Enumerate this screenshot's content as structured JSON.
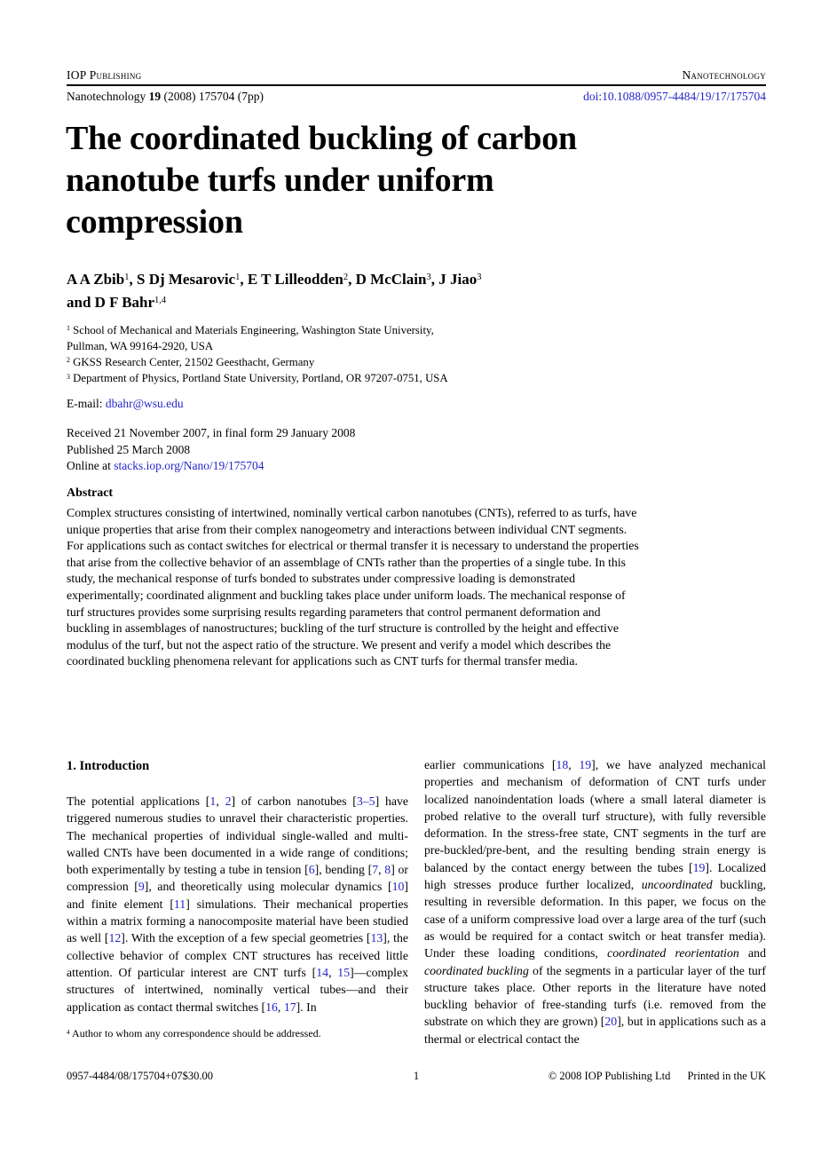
{
  "colors": {
    "link": "#2424cb",
    "text": "#000000"
  },
  "header": {
    "publisher": "IOP Publishing",
    "journal": "Nanotechnology",
    "citation": [
      {
        "t": "Nanotechnology "
      },
      {
        "t": "19",
        "s": "b"
      },
      {
        "t": " (2008) 175704 (7pp)"
      }
    ],
    "doi": "doi:10.1088/0957-4484/19/17/175704"
  },
  "title": [
    {
      "t": "The coordinated buckling of carbon"
    },
    {
      "br": true
    },
    {
      "t": "nanotube turfs under uniform"
    },
    {
      "br": true
    },
    {
      "t": "compression"
    }
  ],
  "authors": [
    {
      "t": "A A Zbib"
    },
    {
      "t": "1",
      "s": "sup"
    },
    {
      "t": ", S Dj Mesarovic"
    },
    {
      "t": "1",
      "s": "sup"
    },
    {
      "t": ", E T Lilleodden"
    },
    {
      "t": "2",
      "s": "sup"
    },
    {
      "t": ", D McClain"
    },
    {
      "t": "3",
      "s": "sup"
    },
    {
      "t": ", J Jiao"
    },
    {
      "t": "3",
      "s": "sup"
    },
    {
      "br": true
    },
    {
      "t": "and D F Bahr"
    },
    {
      "t": "1,4",
      "s": "sup"
    }
  ],
  "affiliations": [
    [
      {
        "t": "1",
        "s": "sup"
      },
      {
        "t": " School of Mechanical and Materials Engineering, Washington State University,"
      },
      {
        "br": true
      },
      {
        "t": "Pullman, WA 99164-2920, USA"
      }
    ],
    [
      {
        "t": "2",
        "s": "sup"
      },
      {
        "t": " GKSS Research Center, 21502 Geesthacht, Germany"
      }
    ],
    [
      {
        "t": "3",
        "s": "sup"
      },
      {
        "t": " Department of Physics, Portland State University, Portland, OR 97207-0751, USA"
      }
    ]
  ],
  "email": [
    {
      "t": "E-mail: "
    },
    {
      "t": "dbahr@wsu.edu",
      "s": "link",
      "n": "email-link"
    }
  ],
  "dates": {
    "received": "Received 21 November 2007, in final form 29 January 2008",
    "published": "Published 25 March 2008",
    "online": [
      {
        "t": "Online at "
      },
      {
        "t": "stacks.iop.org/Nano/19/175704",
        "s": "link",
        "n": "stacks-link"
      }
    ]
  },
  "abstract": {
    "heading": "Abstract",
    "text": "Complex structures consisting of intertwined, nominally vertical carbon nanotubes (CNTs), referred to as turfs, have unique properties that arise from their complex nanogeometry and interactions between individual CNT segments. For applications such as contact switches for electrical or thermal transfer it is necessary to understand the properties that arise from the collective behavior of an assemblage of CNTs rather than the properties of a single tube. In this study, the mechanical response of turfs bonded to substrates under compressive loading is demonstrated experimentally; coordinated alignment and buckling takes place under uniform loads. The mechanical response of turf structures provides some surprising results regarding parameters that control permanent deformation and buckling in assemblages of nanostructures; buckling of the turf structure is controlled by the height and effective modulus of the turf, but not the aspect ratio of the structure. We present and verify a model which describes the coordinated buckling phenomena relevant for applications such as CNT turfs for thermal transfer media."
  },
  "sections": {
    "intro_heading": "1. Introduction"
  },
  "body": {
    "left_paragraph": [
      {
        "t": "The potential applications ["
      },
      {
        "t": "1",
        "s": "link"
      },
      {
        "t": ", "
      },
      {
        "t": "2",
        "s": "link"
      },
      {
        "t": "] of carbon nanotubes ["
      },
      {
        "t": "3–5",
        "s": "link"
      },
      {
        "t": "] have triggered numerous studies to unravel their characteristic properties. The mechanical properties of individual single-walled and multi-walled CNTs have been documented in a wide range of conditions; both experimentally by testing a tube in tension ["
      },
      {
        "t": "6",
        "s": "link"
      },
      {
        "t": "], bending ["
      },
      {
        "t": "7",
        "s": "link"
      },
      {
        "t": ", "
      },
      {
        "t": "8",
        "s": "link"
      },
      {
        "t": "] or compression ["
      },
      {
        "t": "9",
        "s": "link"
      },
      {
        "t": "], and theoretically using molecular dynamics ["
      },
      {
        "t": "10",
        "s": "link"
      },
      {
        "t": "] and finite element ["
      },
      {
        "t": "11",
        "s": "link"
      },
      {
        "t": "] simulations. Their mechanical properties within a matrix forming a nanocomposite material have been studied as well ["
      },
      {
        "t": "12",
        "s": "link"
      },
      {
        "t": "]. With the exception of a few special geometries ["
      },
      {
        "t": "13",
        "s": "link"
      },
      {
        "t": "], the collective behavior of complex CNT structures has received little attention. Of particular interest are CNT turfs ["
      },
      {
        "t": "14",
        "s": "link"
      },
      {
        "t": ", "
      },
      {
        "t": "15",
        "s": "link"
      },
      {
        "t": "]—complex structures of intertwined, nominally vertical tubes—and their application as contact thermal switches ["
      },
      {
        "t": "16",
        "s": "link"
      },
      {
        "t": ", "
      },
      {
        "t": "17",
        "s": "link"
      },
      {
        "t": "]. In"
      }
    ],
    "right_paragraph": [
      {
        "t": "earlier communications ["
      },
      {
        "t": "18",
        "s": "link"
      },
      {
        "t": ", "
      },
      {
        "t": "19",
        "s": "link"
      },
      {
        "t": "], we have analyzed mechanical properties and mechanism of deformation of CNT turfs under localized nanoindentation loads (where a small lateral diameter is probed relative to the overall turf structure), with fully reversible deformation. In the stress-free state, CNT segments in the turf are pre-buckled/pre-bent, and the resulting bending strain energy is balanced by the contact energy between the tubes ["
      },
      {
        "t": "19",
        "s": "link"
      },
      {
        "t": "]. Localized high stresses produce further localized, "
      },
      {
        "t": "uncoordinated",
        "s": "i"
      },
      {
        "t": " buckling, resulting in reversible deformation. In this paper, we focus on the case of a uniform compressive load over a large area of the turf (such as would be required for a contact switch or heat transfer media). Under these loading conditions, "
      },
      {
        "t": "coordinated reorientation",
        "s": "i"
      },
      {
        "t": " and "
      },
      {
        "t": "coordinated buckling",
        "s": "i"
      },
      {
        "t": " of the segments in a particular layer of the turf structure takes place. Other reports in the literature have noted buckling behavior of free-standing turfs (i.e. removed from the substrate on which they are grown) ["
      },
      {
        "t": "20",
        "s": "link"
      },
      {
        "t": "], but in applications such as a thermal or electrical contact the"
      }
    ]
  },
  "footnote": [
    {
      "t": "4",
      "s": "sup"
    },
    {
      "t": " Author to whom any correspondence should be addressed."
    }
  ],
  "footer": {
    "issn": "0957-4484/08/175704+07$30.00",
    "page": "1",
    "copyright": "© 2008 IOP Publishing Ltd",
    "printed": "Printed in the UK"
  }
}
